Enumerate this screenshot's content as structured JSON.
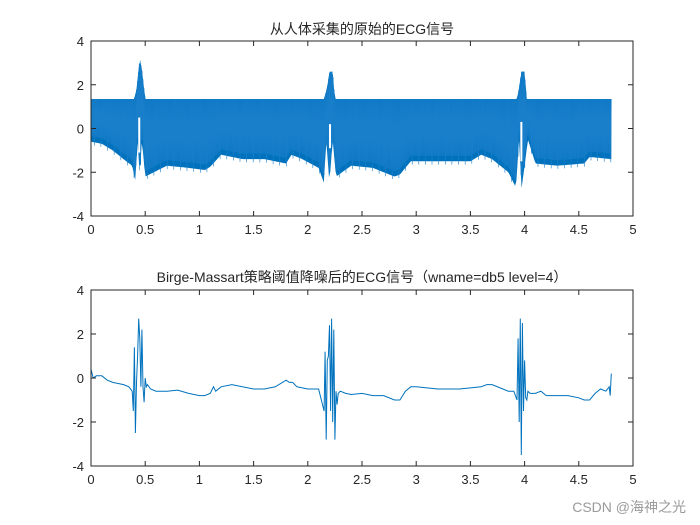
{
  "chart_data": [
    {
      "type": "line",
      "title": "从人体采集的原始的ECG信号",
      "xlabel": "",
      "ylabel": "",
      "xlim": [
        0,
        5
      ],
      "ylim": [
        -4,
        4
      ],
      "xticks": [
        0,
        0.5,
        1,
        1.5,
        2,
        2.5,
        3,
        3.5,
        4,
        4.5,
        5
      ],
      "yticks": [
        -4,
        -2,
        0,
        2,
        4
      ],
      "grid": false,
      "line_color": "#0072BD",
      "description": "Raw ECG contaminated with dense high-frequency noise; upper envelope ~1.35, lower envelope ~-0.6 to -2.3 following baseline wander; R-peaks near t=0.45, 2.2, 3.97",
      "series": [
        {
          "name": "upper_envelope",
          "x": [
            0,
            0.4,
            0.42,
            0.45,
            0.47,
            0.5,
            2.15,
            2.18,
            2.2,
            2.23,
            2.25,
            3.93,
            3.95,
            3.97,
            4.0,
            4.02,
            4.8
          ],
          "y": [
            1.35,
            1.35,
            1.8,
            3.2,
            2.7,
            1.35,
            1.35,
            1.9,
            2.6,
            2.6,
            1.35,
            1.35,
            1.9,
            2.6,
            2.6,
            1.35,
            1.35
          ]
        },
        {
          "name": "lower_envelope",
          "x": [
            0,
            0.1,
            0.2,
            0.3,
            0.38,
            0.41,
            0.43,
            0.45,
            0.47,
            0.5,
            0.7,
            0.9,
            1.05,
            1.1,
            1.2,
            1.4,
            1.6,
            1.8,
            1.85,
            1.95,
            2.1,
            2.15,
            2.17,
            2.2,
            2.23,
            2.26,
            2.4,
            2.6,
            2.8,
            2.85,
            2.95,
            3.2,
            3.5,
            3.6,
            3.7,
            3.85,
            3.92,
            3.95,
            3.97,
            4.0,
            4.03,
            4.1,
            4.3,
            4.55,
            4.6,
            4.8
          ],
          "y": [
            -0.6,
            -0.7,
            -1.0,
            -1.4,
            -1.7,
            -2.4,
            -0.5,
            -2.2,
            -0.5,
            -2.2,
            -1.7,
            -1.8,
            -1.9,
            -1.75,
            -1.2,
            -1.4,
            -1.4,
            -1.6,
            -1.2,
            -1.4,
            -1.8,
            -2.5,
            -0.5,
            -2.5,
            -0.5,
            -2.2,
            -1.7,
            -1.8,
            -2.2,
            -2.1,
            -1.5,
            -1.5,
            -1.5,
            -1.2,
            -1.4,
            -2.0,
            -2.7,
            -0.4,
            -2.8,
            -1.7,
            -0.5,
            -1.6,
            -1.7,
            -1.6,
            -1.3,
            -1.4
          ]
        }
      ]
    },
    {
      "type": "line",
      "title": "Birge-Massart策略阈值降噪后的ECG信号（wname=db5 level=4）",
      "xlabel": "",
      "ylabel": "",
      "xlim": [
        0,
        5
      ],
      "ylim": [
        -4,
        4
      ],
      "xticks": [
        0,
        0.5,
        1,
        1.5,
        2,
        2.5,
        3,
        3.5,
        4,
        4.5,
        5
      ],
      "yticks": [
        -4,
        -2,
        0,
        2,
        4
      ],
      "grid": false,
      "line_color": "#0072BD",
      "series": [
        {
          "name": "denoised_ecg",
          "x": [
            0,
            0.02,
            0.05,
            0.1,
            0.15,
            0.2,
            0.3,
            0.35,
            0.38,
            0.39,
            0.4,
            0.41,
            0.42,
            0.43,
            0.44,
            0.45,
            0.46,
            0.47,
            0.48,
            0.49,
            0.5,
            0.51,
            0.52,
            0.55,
            0.6,
            0.7,
            0.8,
            0.9,
            1.0,
            1.05,
            1.1,
            1.13,
            1.15,
            1.2,
            1.3,
            1.5,
            1.6,
            1.7,
            1.8,
            1.83,
            1.86,
            1.9,
            2.0,
            2.1,
            2.15,
            2.16,
            2.17,
            2.18,
            2.19,
            2.2,
            2.21,
            2.22,
            2.23,
            2.24,
            2.25,
            2.26,
            2.27,
            2.28,
            2.3,
            2.35,
            2.4,
            2.5,
            2.6,
            2.7,
            2.8,
            2.85,
            2.9,
            2.95,
            3.0,
            3.2,
            3.4,
            3.6,
            3.65,
            3.7,
            3.8,
            3.85,
            3.9,
            3.93,
            3.94,
            3.95,
            3.96,
            3.97,
            3.98,
            3.99,
            4.0,
            4.01,
            4.02,
            4.03,
            4.05,
            4.1,
            4.15,
            4.2,
            4.3,
            4.4,
            4.5,
            4.55,
            4.6,
            4.65,
            4.7,
            4.75,
            4.78,
            4.79,
            4.8
          ],
          "y": [
            0.4,
            0.0,
            0.1,
            0.1,
            -0.1,
            -0.2,
            -0.3,
            -0.4,
            -0.6,
            -1.5,
            1.4,
            -2.5,
            -0.2,
            1.0,
            2.7,
            1.8,
            -0.4,
            2.2,
            -0.4,
            -1.1,
            0.0,
            -0.4,
            -0.3,
            -0.5,
            -0.6,
            -0.6,
            -0.55,
            -0.7,
            -0.8,
            -0.8,
            -0.7,
            -0.4,
            -0.6,
            -0.4,
            -0.3,
            -0.5,
            -0.5,
            -0.4,
            -0.1,
            -0.2,
            -0.2,
            -0.4,
            -0.5,
            -0.5,
            -1.5,
            1.2,
            -2.8,
            0.8,
            1.0,
            2.4,
            -1.5,
            2.7,
            -2.0,
            2.2,
            -2.8,
            -0.6,
            -1.2,
            -0.7,
            -0.6,
            -0.7,
            -0.75,
            -0.7,
            -0.8,
            -0.8,
            -1.0,
            -1.0,
            -0.6,
            -0.4,
            -0.4,
            -0.5,
            -0.5,
            -0.4,
            -0.3,
            -0.3,
            -0.5,
            -0.6,
            -0.6,
            -1.0,
            1.8,
            -2.0,
            2.7,
            -3.5,
            2.5,
            -1.5,
            0.8,
            -0.9,
            -1.0,
            -0.6,
            -0.7,
            -0.7,
            -0.6,
            -0.8,
            -0.8,
            -0.8,
            -0.9,
            -1.0,
            -1.0,
            -0.7,
            -0.5,
            -0.6,
            -0.4,
            -0.8,
            0.2
          ]
        }
      ]
    }
  ],
  "titles": {
    "top": "从人体采集的原始的ECG信号",
    "bottom": "Birge-Massart策略阈值降噪后的ECG信号（wname=db5 level=4）"
  },
  "axis_labels": {
    "x": [
      "0",
      "0.5",
      "1",
      "1.5",
      "2",
      "2.5",
      "3",
      "3.5",
      "4",
      "4.5",
      "5"
    ],
    "y": [
      "4",
      "2",
      "0",
      "-2",
      "-4"
    ]
  },
  "watermark": "CSDN @海神之光"
}
